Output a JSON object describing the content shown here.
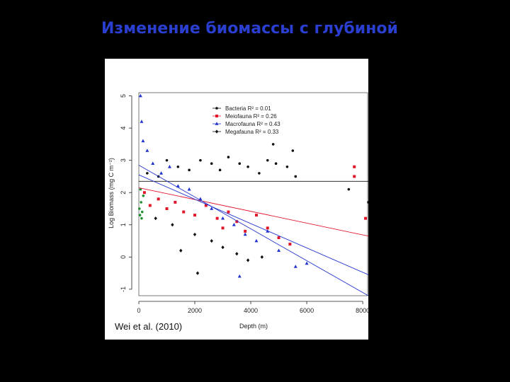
{
  "slide": {
    "title": "Изменение биомассы с глубиной",
    "credit": "Wei et al. (2010)"
  },
  "colors": {
    "background": "#000000",
    "title": "#2a3fd0",
    "bacteria": "#111111",
    "meiofauna": "#e0162b",
    "macrofauna": "#2233cc",
    "megafauna": "#111111",
    "green_points": "#1f8f2f"
  },
  "chart_data": {
    "type": "scatter",
    "xlabel": "Depth (m)",
    "ylabel": "Log Biomass (mg C m⁻²)",
    "xlim": [
      0,
      8200
    ],
    "ylim": [
      -1.2,
      5.1
    ],
    "x_ticks": [
      "0",
      "2000",
      "4000",
      "6000",
      "8000"
    ],
    "y_ticks": [
      "-1",
      "0",
      "1",
      "2",
      "3",
      "4",
      "5"
    ],
    "grid": false,
    "legend_position": "top-right",
    "legend": [
      {
        "label": "Bacteria",
        "r2": "0.01",
        "marker": "circle",
        "color": "#111111"
      },
      {
        "label": "Meiofauna",
        "r2": "0.26",
        "marker": "square",
        "color": "#e0162b"
      },
      {
        "label": "Macrofauna",
        "r2": "0.43",
        "marker": "triangle",
        "color": "#2233cc"
      },
      {
        "label": "Megafauna",
        "r2": "0.33",
        "marker": "diamond",
        "color": "#111111"
      }
    ],
    "fits": [
      {
        "series": "Bacteria",
        "x": [
          0,
          8200
        ],
        "y": [
          2.35,
          2.35
        ],
        "color": "#111111"
      },
      {
        "series": "Meiofauna",
        "x": [
          0,
          8200
        ],
        "y": [
          2.15,
          0.65
        ],
        "color": "#e0162b"
      },
      {
        "series": "Macrofauna",
        "x": [
          0,
          8200
        ],
        "y": [
          2.85,
          -1.2
        ],
        "color": "#2233cc"
      },
      {
        "series": "Megafauna",
        "x": [
          0,
          8200
        ],
        "y": [
          2.55,
          -0.55
        ],
        "color": "#2233cc"
      }
    ],
    "series": [
      {
        "name": "Bacteria",
        "marker": "circle",
        "color": "#111111",
        "points": [
          [
            300,
            2.6
          ],
          [
            700,
            2.5
          ],
          [
            1000,
            3.0
          ],
          [
            1400,
            2.8
          ],
          [
            1800,
            2.7
          ],
          [
            2200,
            3.0
          ],
          [
            2600,
            2.9
          ],
          [
            2900,
            2.7
          ],
          [
            3200,
            3.1
          ],
          [
            3600,
            2.9
          ],
          [
            3900,
            2.8
          ],
          [
            4300,
            2.6
          ],
          [
            4600,
            3.0
          ],
          [
            4900,
            2.9
          ],
          [
            5300,
            2.8
          ],
          [
            5600,
            2.5
          ],
          [
            7500,
            2.1
          ],
          [
            8200,
            1.7
          ],
          [
            5500,
            3.3
          ],
          [
            4800,
            3.5
          ]
        ]
      },
      {
        "name": "Meiofauna",
        "marker": "square",
        "color": "#e0162b",
        "points": [
          [
            200,
            2.0
          ],
          [
            400,
            1.6
          ],
          [
            700,
            1.8
          ],
          [
            1000,
            1.5
          ],
          [
            1300,
            1.7
          ],
          [
            1600,
            1.4
          ],
          [
            2000,
            1.3
          ],
          [
            2400,
            1.6
          ],
          [
            2800,
            1.2
          ],
          [
            3000,
            0.9
          ],
          [
            3200,
            1.4
          ],
          [
            3500,
            1.1
          ],
          [
            3800,
            0.8
          ],
          [
            4200,
            1.3
          ],
          [
            4600,
            0.9
          ],
          [
            5000,
            0.6
          ],
          [
            5400,
            0.4
          ],
          [
            7700,
            2.5
          ],
          [
            7700,
            2.8
          ],
          [
            8100,
            1.2
          ]
        ]
      },
      {
        "name": "Macrofauna",
        "marker": "triangle",
        "color": "#2233cc",
        "points": [
          [
            60,
            5.0
          ],
          [
            100,
            4.2
          ],
          [
            150,
            3.6
          ],
          [
            300,
            3.3
          ],
          [
            500,
            2.9
          ],
          [
            800,
            2.6
          ],
          [
            1100,
            2.8
          ],
          [
            1400,
            2.2
          ],
          [
            1800,
            2.1
          ],
          [
            2200,
            1.8
          ],
          [
            2600,
            1.5
          ],
          [
            3000,
            1.2
          ],
          [
            3400,
            1.0
          ],
          [
            3800,
            0.7
          ],
          [
            4200,
            0.5
          ],
          [
            4600,
            0.8
          ],
          [
            5000,
            0.2
          ],
          [
            5600,
            -0.3
          ],
          [
            6000,
            -0.2
          ],
          [
            3600,
            -0.6
          ]
        ]
      },
      {
        "name": "Megafauna",
        "marker": "diamond",
        "color": "#111111",
        "points": [
          [
            600,
            1.2
          ],
          [
            1200,
            1.0
          ],
          [
            2000,
            0.7
          ],
          [
            2600,
            0.5
          ],
          [
            3000,
            0.3
          ],
          [
            3500,
            0.1
          ],
          [
            3900,
            -0.1
          ],
          [
            4400,
            0.0
          ],
          [
            2100,
            -0.5
          ],
          [
            1500,
            0.2
          ]
        ]
      },
      {
        "name": "",
        "marker": "circle",
        "color": "#1f8f2f",
        "points": [
          [
            20,
            1.5
          ],
          [
            40,
            1.3
          ],
          [
            80,
            1.7
          ],
          [
            120,
            1.4
          ],
          [
            160,
            1.9
          ],
          [
            60,
            2.1
          ],
          [
            100,
            1.2
          ]
        ]
      }
    ]
  }
}
